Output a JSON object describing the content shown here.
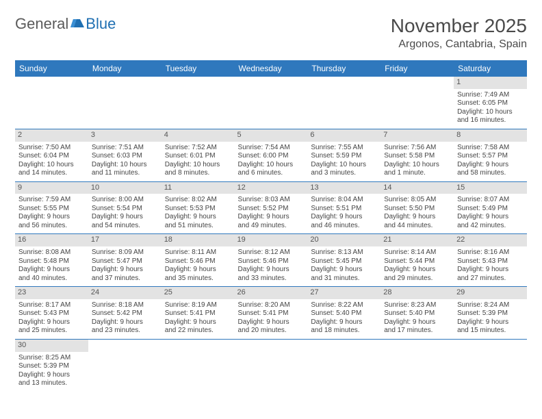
{
  "logo": {
    "part1": "General",
    "part2": "Blue"
  },
  "title": "November 2025",
  "location": "Argonos, Cantabria, Spain",
  "columns": [
    "Sunday",
    "Monday",
    "Tuesday",
    "Wednesday",
    "Thursday",
    "Friday",
    "Saturday"
  ],
  "colors": {
    "header_bg": "#2f78bd",
    "header_text": "#ffffff",
    "row_divider": "#2f78bd",
    "daynum_bg": "#e3e3e3",
    "logo_gray": "#5a5a5a",
    "logo_blue": "#1f6fb2"
  },
  "weeks": [
    [
      {
        "n": "",
        "empty": true
      },
      {
        "n": "",
        "empty": true
      },
      {
        "n": "",
        "empty": true
      },
      {
        "n": "",
        "empty": true
      },
      {
        "n": "",
        "empty": true
      },
      {
        "n": "",
        "empty": true
      },
      {
        "n": "1",
        "sunrise": "Sunrise: 7:49 AM",
        "sunset": "Sunset: 6:05 PM",
        "day1": "Daylight: 10 hours",
        "day2": "and 16 minutes."
      }
    ],
    [
      {
        "n": "2",
        "sunrise": "Sunrise: 7:50 AM",
        "sunset": "Sunset: 6:04 PM",
        "day1": "Daylight: 10 hours",
        "day2": "and 14 minutes."
      },
      {
        "n": "3",
        "sunrise": "Sunrise: 7:51 AM",
        "sunset": "Sunset: 6:03 PM",
        "day1": "Daylight: 10 hours",
        "day2": "and 11 minutes."
      },
      {
        "n": "4",
        "sunrise": "Sunrise: 7:52 AM",
        "sunset": "Sunset: 6:01 PM",
        "day1": "Daylight: 10 hours",
        "day2": "and 8 minutes."
      },
      {
        "n": "5",
        "sunrise": "Sunrise: 7:54 AM",
        "sunset": "Sunset: 6:00 PM",
        "day1": "Daylight: 10 hours",
        "day2": "and 6 minutes."
      },
      {
        "n": "6",
        "sunrise": "Sunrise: 7:55 AM",
        "sunset": "Sunset: 5:59 PM",
        "day1": "Daylight: 10 hours",
        "day2": "and 3 minutes."
      },
      {
        "n": "7",
        "sunrise": "Sunrise: 7:56 AM",
        "sunset": "Sunset: 5:58 PM",
        "day1": "Daylight: 10 hours",
        "day2": "and 1 minute."
      },
      {
        "n": "8",
        "sunrise": "Sunrise: 7:58 AM",
        "sunset": "Sunset: 5:57 PM",
        "day1": "Daylight: 9 hours",
        "day2": "and 58 minutes."
      }
    ],
    [
      {
        "n": "9",
        "sunrise": "Sunrise: 7:59 AM",
        "sunset": "Sunset: 5:55 PM",
        "day1": "Daylight: 9 hours",
        "day2": "and 56 minutes."
      },
      {
        "n": "10",
        "sunrise": "Sunrise: 8:00 AM",
        "sunset": "Sunset: 5:54 PM",
        "day1": "Daylight: 9 hours",
        "day2": "and 54 minutes."
      },
      {
        "n": "11",
        "sunrise": "Sunrise: 8:02 AM",
        "sunset": "Sunset: 5:53 PM",
        "day1": "Daylight: 9 hours",
        "day2": "and 51 minutes."
      },
      {
        "n": "12",
        "sunrise": "Sunrise: 8:03 AM",
        "sunset": "Sunset: 5:52 PM",
        "day1": "Daylight: 9 hours",
        "day2": "and 49 minutes."
      },
      {
        "n": "13",
        "sunrise": "Sunrise: 8:04 AM",
        "sunset": "Sunset: 5:51 PM",
        "day1": "Daylight: 9 hours",
        "day2": "and 46 minutes."
      },
      {
        "n": "14",
        "sunrise": "Sunrise: 8:05 AM",
        "sunset": "Sunset: 5:50 PM",
        "day1": "Daylight: 9 hours",
        "day2": "and 44 minutes."
      },
      {
        "n": "15",
        "sunrise": "Sunrise: 8:07 AM",
        "sunset": "Sunset: 5:49 PM",
        "day1": "Daylight: 9 hours",
        "day2": "and 42 minutes."
      }
    ],
    [
      {
        "n": "16",
        "sunrise": "Sunrise: 8:08 AM",
        "sunset": "Sunset: 5:48 PM",
        "day1": "Daylight: 9 hours",
        "day2": "and 40 minutes."
      },
      {
        "n": "17",
        "sunrise": "Sunrise: 8:09 AM",
        "sunset": "Sunset: 5:47 PM",
        "day1": "Daylight: 9 hours",
        "day2": "and 37 minutes."
      },
      {
        "n": "18",
        "sunrise": "Sunrise: 8:11 AM",
        "sunset": "Sunset: 5:46 PM",
        "day1": "Daylight: 9 hours",
        "day2": "and 35 minutes."
      },
      {
        "n": "19",
        "sunrise": "Sunrise: 8:12 AM",
        "sunset": "Sunset: 5:46 PM",
        "day1": "Daylight: 9 hours",
        "day2": "and 33 minutes."
      },
      {
        "n": "20",
        "sunrise": "Sunrise: 8:13 AM",
        "sunset": "Sunset: 5:45 PM",
        "day1": "Daylight: 9 hours",
        "day2": "and 31 minutes."
      },
      {
        "n": "21",
        "sunrise": "Sunrise: 8:14 AM",
        "sunset": "Sunset: 5:44 PM",
        "day1": "Daylight: 9 hours",
        "day2": "and 29 minutes."
      },
      {
        "n": "22",
        "sunrise": "Sunrise: 8:16 AM",
        "sunset": "Sunset: 5:43 PM",
        "day1": "Daylight: 9 hours",
        "day2": "and 27 minutes."
      }
    ],
    [
      {
        "n": "23",
        "sunrise": "Sunrise: 8:17 AM",
        "sunset": "Sunset: 5:43 PM",
        "day1": "Daylight: 9 hours",
        "day2": "and 25 minutes."
      },
      {
        "n": "24",
        "sunrise": "Sunrise: 8:18 AM",
        "sunset": "Sunset: 5:42 PM",
        "day1": "Daylight: 9 hours",
        "day2": "and 23 minutes."
      },
      {
        "n": "25",
        "sunrise": "Sunrise: 8:19 AM",
        "sunset": "Sunset: 5:41 PM",
        "day1": "Daylight: 9 hours",
        "day2": "and 22 minutes."
      },
      {
        "n": "26",
        "sunrise": "Sunrise: 8:20 AM",
        "sunset": "Sunset: 5:41 PM",
        "day1": "Daylight: 9 hours",
        "day2": "and 20 minutes."
      },
      {
        "n": "27",
        "sunrise": "Sunrise: 8:22 AM",
        "sunset": "Sunset: 5:40 PM",
        "day1": "Daylight: 9 hours",
        "day2": "and 18 minutes."
      },
      {
        "n": "28",
        "sunrise": "Sunrise: 8:23 AM",
        "sunset": "Sunset: 5:40 PM",
        "day1": "Daylight: 9 hours",
        "day2": "and 17 minutes."
      },
      {
        "n": "29",
        "sunrise": "Sunrise: 8:24 AM",
        "sunset": "Sunset: 5:39 PM",
        "day1": "Daylight: 9 hours",
        "day2": "and 15 minutes."
      }
    ],
    [
      {
        "n": "30",
        "sunrise": "Sunrise: 8:25 AM",
        "sunset": "Sunset: 5:39 PM",
        "day1": "Daylight: 9 hours",
        "day2": "and 13 minutes."
      },
      {
        "n": "",
        "empty": true
      },
      {
        "n": "",
        "empty": true
      },
      {
        "n": "",
        "empty": true
      },
      {
        "n": "",
        "empty": true
      },
      {
        "n": "",
        "empty": true
      },
      {
        "n": "",
        "empty": true
      }
    ]
  ]
}
